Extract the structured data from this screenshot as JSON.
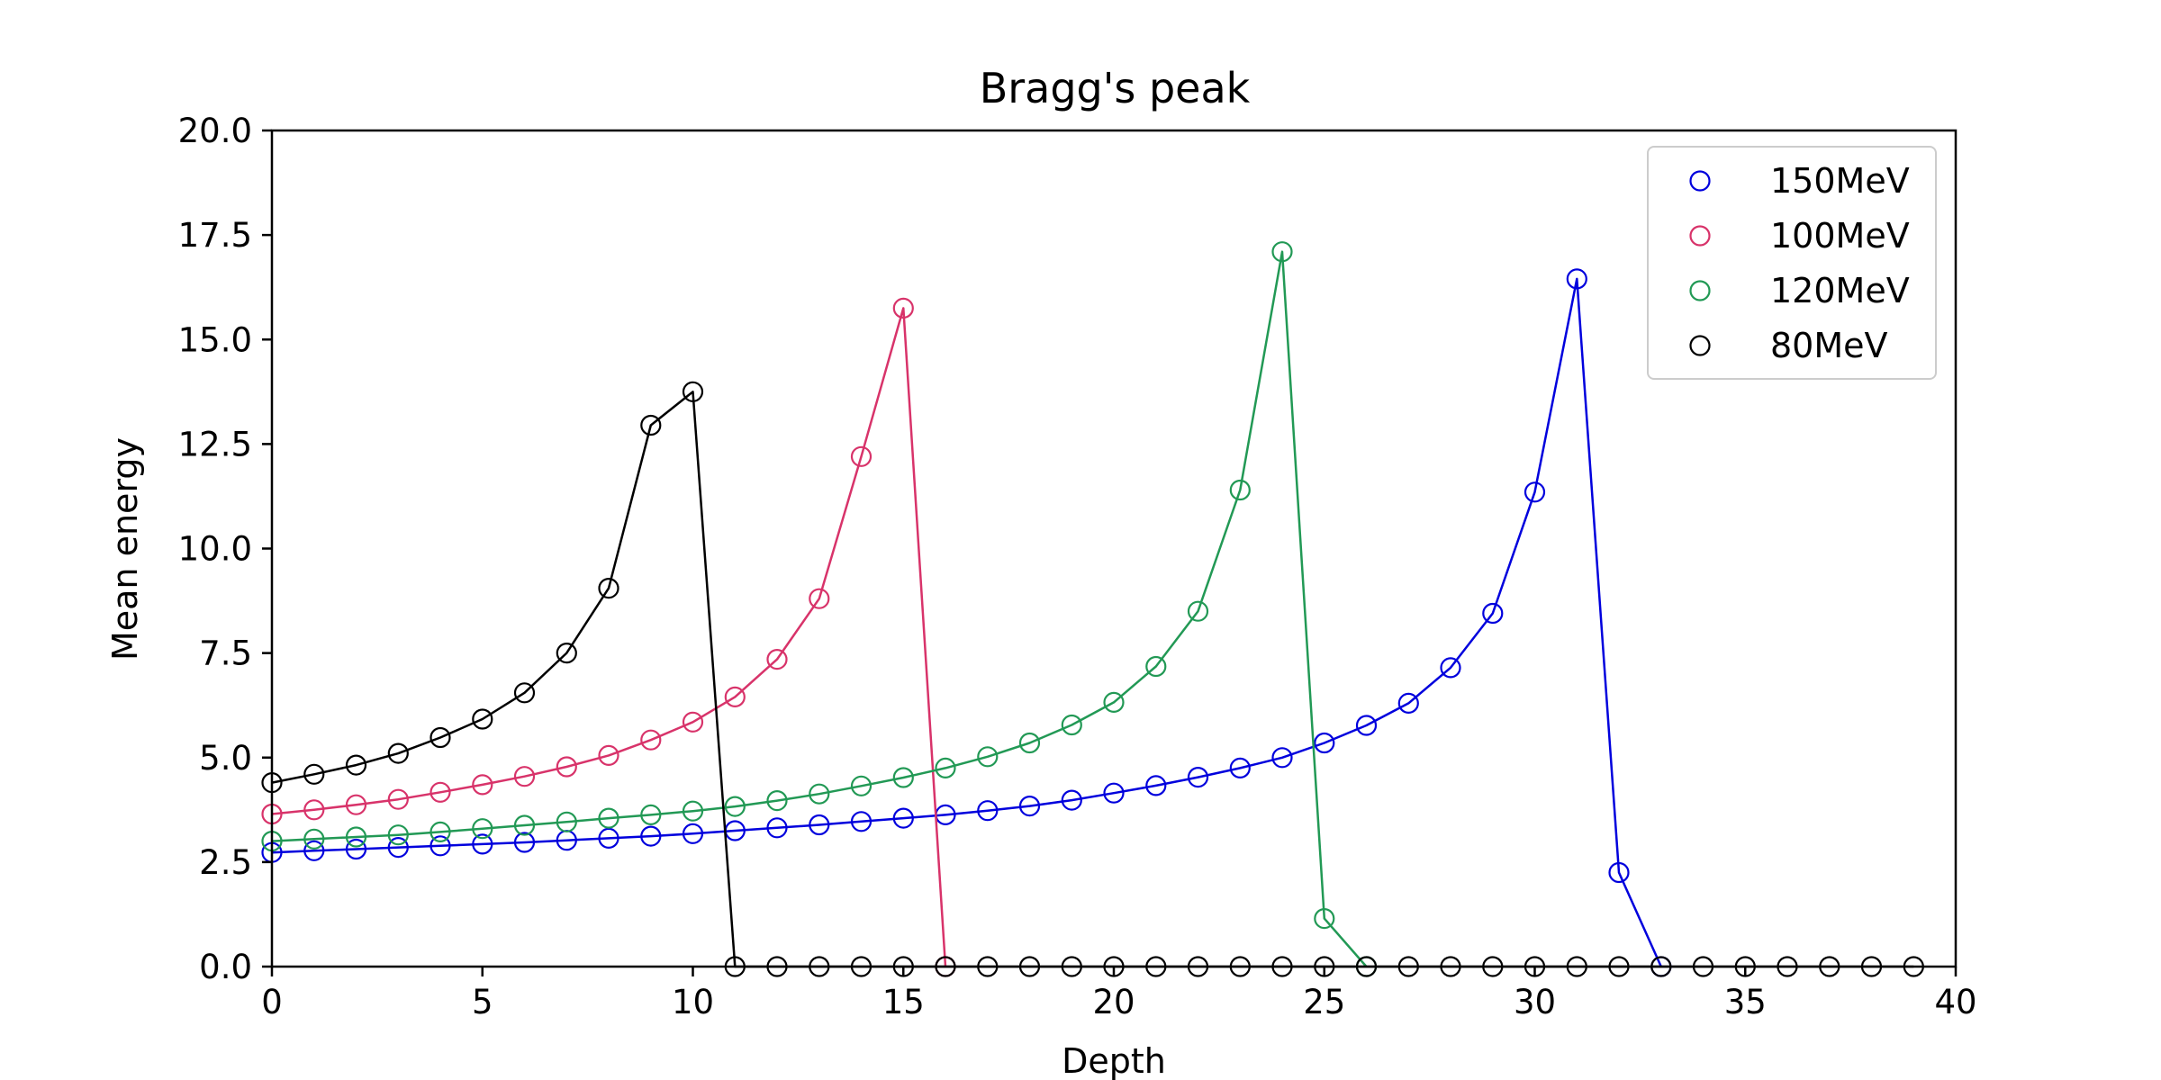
{
  "chart_data": {
    "type": "line",
    "title": "Bragg's peak",
    "xlabel": "Depth",
    "ylabel": "Mean energy",
    "xlim": [
      0,
      40
    ],
    "ylim": [
      0,
      20
    ],
    "xticks": [
      0,
      5,
      10,
      15,
      20,
      25,
      30,
      35,
      40
    ],
    "yticks": [
      0.0,
      2.5,
      5.0,
      7.5,
      10.0,
      12.5,
      15.0,
      17.5,
      20.0
    ],
    "ytick_labels": [
      "0.0",
      "2.5",
      "5.0",
      "7.5",
      "10.0",
      "12.5",
      "15.0",
      "17.5",
      "20.0"
    ],
    "xtick_labels": [
      "0",
      "5",
      "10",
      "15",
      "20",
      "25",
      "30",
      "35",
      "40"
    ],
    "grid": false,
    "legend_position": "top-right",
    "marker": "open-circle",
    "series": [
      {
        "name": "150MeV",
        "color": "#0000dd",
        "x": [
          0,
          1,
          2,
          3,
          4,
          5,
          6,
          7,
          8,
          9,
          10,
          11,
          12,
          13,
          14,
          15,
          16,
          17,
          18,
          19,
          20,
          21,
          22,
          23,
          24,
          25,
          26,
          27,
          28,
          29,
          30,
          31,
          32,
          33
        ],
        "y": [
          2.73,
          2.77,
          2.81,
          2.85,
          2.89,
          2.93,
          2.97,
          3.02,
          3.07,
          3.12,
          3.18,
          3.25,
          3.32,
          3.39,
          3.47,
          3.55,
          3.63,
          3.73,
          3.84,
          3.98,
          4.15,
          4.33,
          4.53,
          4.75,
          5.0,
          5.35,
          5.77,
          6.3,
          7.15,
          8.45,
          11.35,
          16.45,
          2.25,
          0.0
        ]
      },
      {
        "name": "100MeV",
        "color": "#d8336a",
        "x": [
          0,
          1,
          2,
          3,
          4,
          5,
          6,
          7,
          8,
          9,
          10,
          11,
          12,
          13,
          14,
          15,
          16
        ],
        "y": [
          3.65,
          3.75,
          3.87,
          4.0,
          4.17,
          4.35,
          4.55,
          4.78,
          5.05,
          5.42,
          5.85,
          6.45,
          7.35,
          8.8,
          12.2,
          15.75,
          0.0
        ]
      },
      {
        "name": "120MeV",
        "color": "#229955",
        "x": [
          0,
          1,
          2,
          3,
          4,
          5,
          6,
          7,
          8,
          9,
          10,
          11,
          12,
          13,
          14,
          15,
          16,
          17,
          18,
          19,
          20,
          21,
          22,
          23,
          24,
          25,
          26
        ],
        "y": [
          3.0,
          3.05,
          3.1,
          3.15,
          3.22,
          3.3,
          3.38,
          3.46,
          3.55,
          3.63,
          3.72,
          3.83,
          3.97,
          4.13,
          4.32,
          4.52,
          4.75,
          5.02,
          5.35,
          5.78,
          6.32,
          7.18,
          8.5,
          11.4,
          17.1,
          1.15,
          0.0
        ]
      },
      {
        "name": "80MeV",
        "color": "#000000",
        "x": [
          0,
          1,
          2,
          3,
          4,
          5,
          6,
          7,
          8,
          9,
          10,
          11,
          12,
          13,
          14,
          15,
          16,
          17,
          18,
          19,
          20,
          21,
          22,
          23,
          24,
          25,
          26,
          27,
          28,
          29,
          30,
          31,
          32,
          33,
          34,
          35,
          36,
          37,
          38,
          39
        ],
        "y": [
          4.4,
          4.6,
          4.82,
          5.1,
          5.48,
          5.92,
          6.55,
          7.5,
          9.05,
          12.95,
          13.75,
          0.0,
          0.0,
          0.0,
          0.0,
          0.0,
          0.0,
          0.0,
          0.0,
          0.0,
          0.0,
          0.0,
          0.0,
          0.0,
          0.0,
          0.0,
          0.0,
          0.0,
          0.0,
          0.0,
          0.0,
          0.0,
          0.0,
          0.0,
          0.0,
          0.0,
          0.0,
          0.0,
          0.0,
          0.0
        ]
      }
    ]
  }
}
